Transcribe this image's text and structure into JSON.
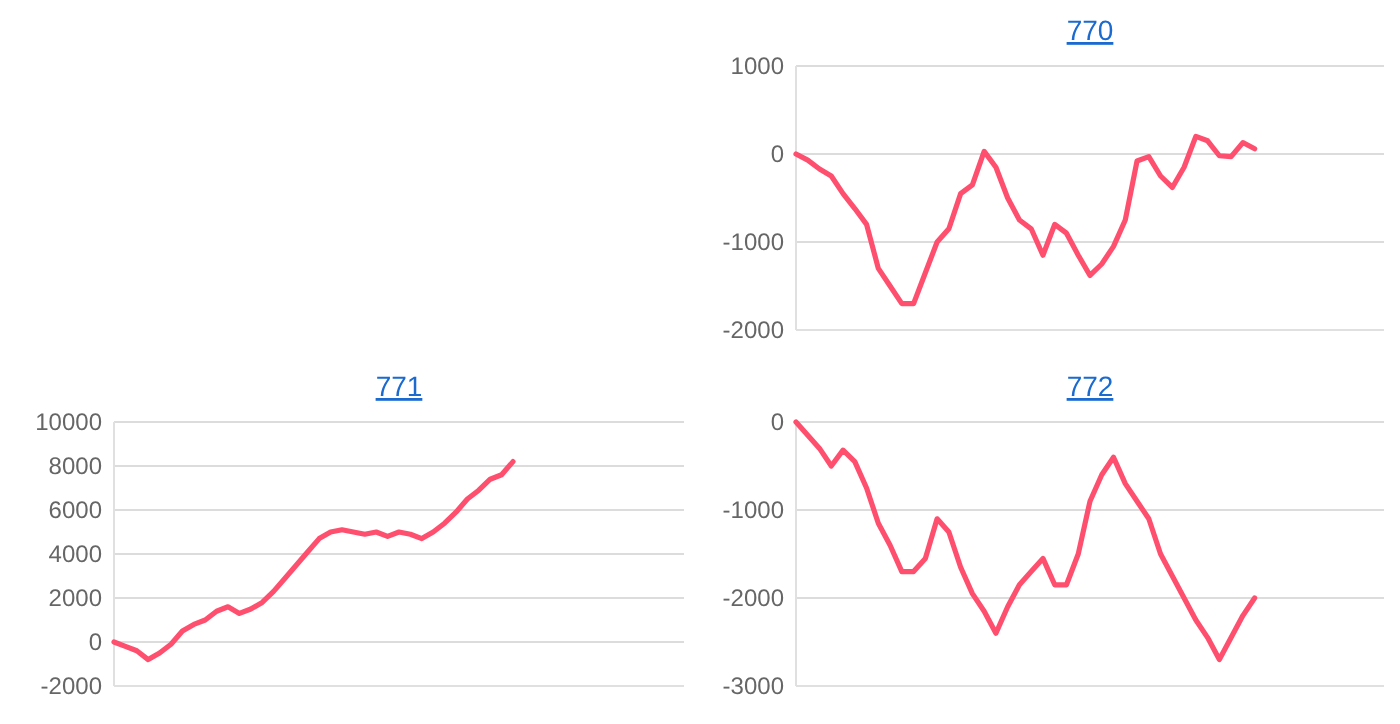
{
  "chart_data": [
    {
      "type": "line",
      "title": "770",
      "categories": [
        null,
        null,
        null,
        null,
        null,
        null,
        null,
        null,
        null,
        null,
        null,
        null,
        null,
        null,
        null,
        null,
        null,
        null,
        null,
        null,
        null,
        null,
        null,
        null,
        null,
        null,
        null,
        null,
        null,
        null,
        null,
        null,
        null,
        null,
        null,
        null,
        null,
        null,
        null,
        null,
        null,
        null,
        null,
        null,
        null,
        null,
        null,
        null,
        null,
        null
      ],
      "series": [
        {
          "color": "#ff4f6e",
          "values": [
            0,
            -70,
            -170,
            -250,
            -450,
            -620,
            -800,
            -1300,
            -1500,
            -1700,
            -1700,
            -1350,
            -1000,
            -850,
            -450,
            -350,
            30,
            -150,
            -500,
            -750,
            -850,
            -1150,
            -800,
            -900,
            -1150,
            -1380,
            -1250,
            -1050,
            -750,
            -80,
            -30,
            -250,
            -380,
            -150,
            200,
            150,
            -20,
            -30,
            130,
            60,
            null,
            null,
            null,
            null,
            null,
            null,
            null,
            null,
            null,
            null
          ]
        }
      ],
      "ylim": [
        -2000,
        1000
      ],
      "yticks": [
        -2000,
        -1000,
        0,
        1000
      ],
      "grid": "y",
      "marker": "none",
      "line_style": "solid",
      "tick_labels": "y"
    },
    {
      "type": "line",
      "title": "771",
      "categories": [
        null,
        null,
        null,
        null,
        null,
        null,
        null,
        null,
        null,
        null,
        null,
        null,
        null,
        null,
        null,
        null,
        null,
        null,
        null,
        null,
        null,
        null,
        null,
        null,
        null,
        null,
        null,
        null,
        null,
        null,
        null,
        null,
        null,
        null,
        null,
        null,
        null,
        null,
        null,
        null,
        null,
        null,
        null,
        null,
        null,
        null,
        null,
        null,
        null,
        null
      ],
      "series": [
        {
          "color": "#ff4f6e",
          "values": [
            0,
            -200,
            -400,
            -800,
            -500,
            -100,
            500,
            800,
            1000,
            1400,
            1600,
            1300,
            1500,
            1800,
            2300,
            2900,
            3500,
            4100,
            4700,
            5000,
            5100,
            5000,
            4900,
            5000,
            4800,
            5000,
            4900,
            4700,
            5000,
            5400,
            5900,
            6500,
            6900,
            7400,
            7600,
            8200,
            null,
            null,
            null,
            null,
            null,
            null,
            null,
            null,
            null,
            null,
            null,
            null,
            null,
            null
          ]
        }
      ],
      "ylim": [
        -2000,
        10000
      ],
      "yticks": [
        -2000,
        0,
        2000,
        4000,
        6000,
        8000,
        10000
      ],
      "grid": "y",
      "marker": "none",
      "line_style": "solid",
      "tick_labels": "y"
    },
    {
      "type": "line",
      "title": "772",
      "categories": [
        null,
        null,
        null,
        null,
        null,
        null,
        null,
        null,
        null,
        null,
        null,
        null,
        null,
        null,
        null,
        null,
        null,
        null,
        null,
        null,
        null,
        null,
        null,
        null,
        null,
        null,
        null,
        null,
        null,
        null,
        null,
        null,
        null,
        null,
        null,
        null,
        null,
        null,
        null,
        null,
        null,
        null,
        null,
        null,
        null,
        null,
        null,
        null,
        null,
        null
      ],
      "series": [
        {
          "color": "#ff4f6e",
          "values": [
            0,
            -150,
            -300,
            -500,
            -320,
            -450,
            -750,
            -1150,
            -1400,
            -1700,
            -1700,
            -1550,
            -1100,
            -1250,
            -1650,
            -1950,
            -2150,
            -2400,
            -2100,
            -1850,
            -1700,
            -1550,
            -1850,
            -1850,
            -1500,
            -900,
            -600,
            -400,
            -700,
            -900,
            -1100,
            -1500,
            -1750,
            -2000,
            -2250,
            -2450,
            -2700,
            -2450,
            -2200,
            -2000,
            null,
            null,
            null,
            null,
            null,
            null,
            null,
            null,
            null,
            null
          ]
        }
      ],
      "ylim": [
        -3000,
        0
      ],
      "yticks": [
        -3000,
        -2000,
        -1000,
        0
      ],
      "grid": "y",
      "marker": "none",
      "line_style": "solid",
      "tick_labels": "y"
    }
  ]
}
